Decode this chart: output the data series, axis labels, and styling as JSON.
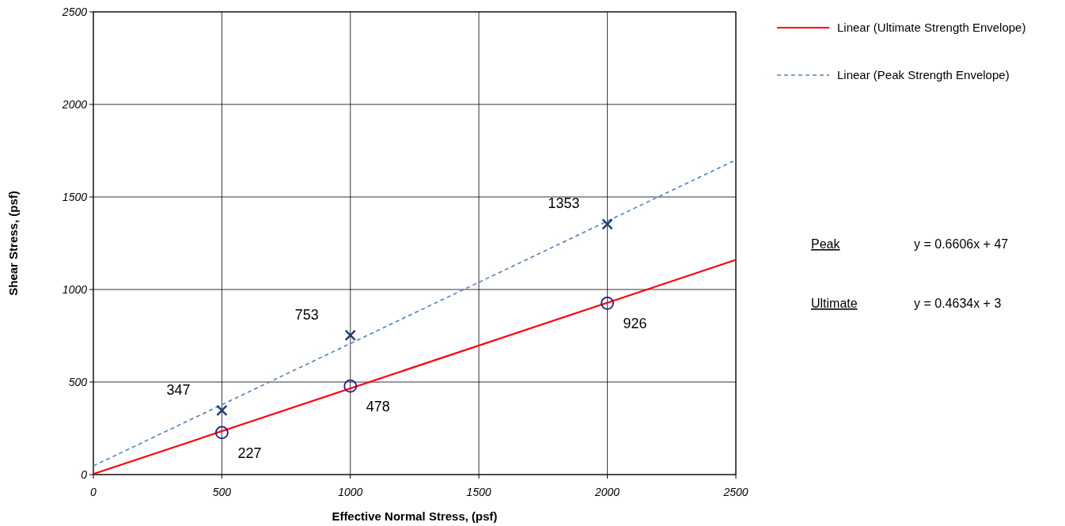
{
  "chart_data": {
    "type": "scatter",
    "xlabel": "Effective Normal Stress, (psf)",
    "ylabel": "Shear Stress, (psf)",
    "xlim": [
      0,
      2500
    ],
    "ylim": [
      0,
      2500
    ],
    "xticks": [
      0,
      500,
      1000,
      1500,
      2000,
      2500
    ],
    "yticks": [
      0,
      500,
      1000,
      1500,
      2000,
      2500
    ],
    "grid": true,
    "legend": "right",
    "series": [
      {
        "type": "line",
        "name": "Linear (Ultimate Strength Envelope)",
        "color": "#ff0000",
        "x": [
          0,
          2500
        ],
        "values": [
          3,
          1160
        ],
        "marker": "none",
        "line_style": "solid"
      },
      {
        "type": "line",
        "name": "Linear (Peak Strength Envelope)",
        "color": "#4f81bd",
        "x": [
          0,
          2500
        ],
        "values": [
          47,
          1700
        ],
        "marker": "none",
        "line_style": "dashed"
      },
      {
        "type": "scatter",
        "color": "#1f3f7a",
        "x": [
          500,
          1000,
          2000
        ],
        "values": [
          347,
          753,
          1353
        ],
        "marker": "cross",
        "value_labels": [
          "347",
          "753",
          "1353"
        ]
      },
      {
        "type": "scatter",
        "color": "#1a1a8c",
        "x": [
          500,
          1000,
          2000
        ],
        "values": [
          227,
          478,
          926
        ],
        "marker": "circle",
        "value_labels": [
          "227",
          "478",
          "926"
        ]
      }
    ],
    "annotations": [
      "Peak",
      "y = 0.6606x + 47",
      "Ultimate",
      "y = 0.4634x + 3"
    ]
  }
}
